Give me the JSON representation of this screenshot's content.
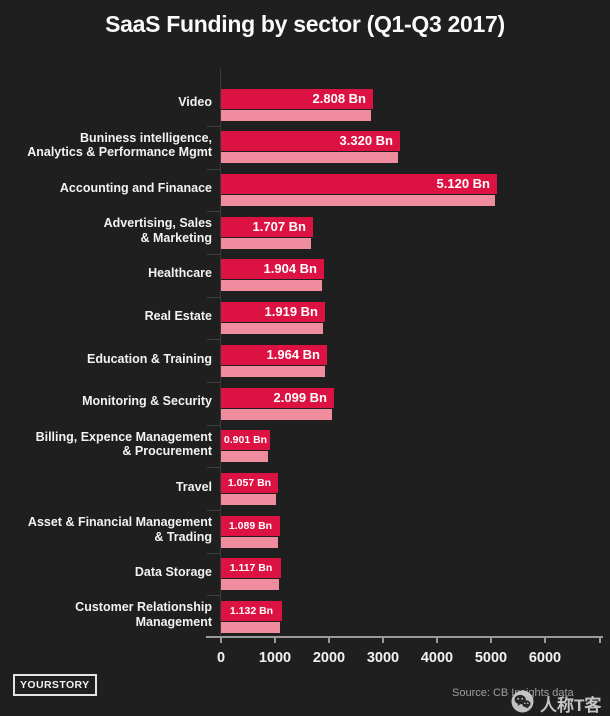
{
  "title": "SaaS Funding by sector (Q1-Q3 2017)",
  "chart_data": {
    "type": "bar",
    "orientation": "horizontal",
    "title": "SaaS Funding by sector (Q1-Q3 2017)",
    "categories": [
      "Video",
      "Buniness intelligence, Analytics & Performance Mgmt",
      "Accounting and Finanace",
      "Advertising, Sales & Marketing",
      "Healthcare",
      "Real Estate",
      "Education & Training",
      "Monitoring & Security",
      "Billing, Expence Management & Procurement",
      "Travel",
      "Asset & Financial Management & Trading",
      "Data Storage",
      "Customer Relationship Management"
    ],
    "category_label_lines": [
      [
        "Video"
      ],
      [
        "Buniness intelligence,",
        "Analytics & Performance Mgmt"
      ],
      [
        "Accounting and Finanace"
      ],
      [
        "Advertising, Sales",
        "& Marketing"
      ],
      [
        "Healthcare"
      ],
      [
        "Real Estate"
      ],
      [
        "Education & Training"
      ],
      [
        "Monitoring & Security"
      ],
      [
        "Billing, Expence Management",
        "& Procurement"
      ],
      [
        "Travel"
      ],
      [
        "Asset & Financial Management",
        "& Trading"
      ],
      [
        "Data Storage"
      ],
      [
        "Customer Relationship",
        "Management"
      ]
    ],
    "values": [
      2808,
      3320,
      5120,
      1707,
      1904,
      1919,
      1964,
      2099,
      901,
      1057,
      1089,
      1117,
      1132
    ],
    "value_labels": [
      "2.808 Bn",
      "3.320 Bn",
      "5.120 Bn",
      "1.707 Bn",
      "1.904 Bn",
      "1.919 Bn",
      "1.964 Bn",
      "2.099 Bn",
      "0.901 Bn",
      "1.057 Bn",
      "1.089 Bn",
      "1.117 Bn",
      "1.132 Bn"
    ],
    "series": [
      {
        "name": "funding-bar",
        "color": "#dc1243",
        "values": [
          2808,
          3320,
          5120,
          1707,
          1904,
          1919,
          1964,
          2099,
          901,
          1057,
          1089,
          1117,
          1132
        ]
      },
      {
        "name": "funding-bar-shadow",
        "color": "#ef8c9d",
        "values": [
          2808,
          3320,
          5120,
          1707,
          1904,
          1919,
          1964,
          2099,
          901,
          1057,
          1089,
          1117,
          1132
        ]
      }
    ],
    "xlabel": "",
    "ylabel": "",
    "xlim": [
      0,
      6000
    ],
    "x_ticks": [
      "0",
      "1000",
      "2000",
      "3000",
      "4000",
      "5000",
      "6000"
    ],
    "grid": "off",
    "legend": "none"
  },
  "footer": {
    "logo_label": "YOURSTORY",
    "source_label": "Source: CB Insights data",
    "watermark_label": "人称T客",
    "watermark_icon": "wechat-icon"
  },
  "colors": {
    "background": "#1f1f1f",
    "bar_primary": "#dc1243",
    "bar_shadow": "#ef8c9d",
    "text": "#f2f2f2",
    "axis": "#9a9a9a",
    "muted_text": "#9e9e9e"
  }
}
